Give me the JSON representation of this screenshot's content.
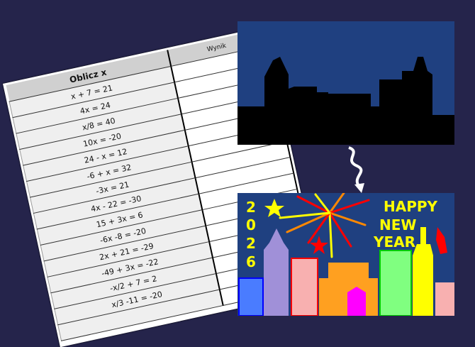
{
  "worksheet": {
    "title": "Oblicz x",
    "answer_header": "Wynik",
    "equations": [
      "x + 7 = 21",
      "4x = 24",
      "x/8 = 40",
      "10x = -20",
      "24 - x = 12",
      "-6 + x = 32",
      "-3x = 21",
      "4x - 22 = -30",
      "15 + 3x = 6",
      "-6x -8 = -20",
      "2x + 21 = -29",
      "-49 + 3x = -22",
      "-x/2 + 7 = 2",
      "x/3 -11 = -20",
      ""
    ]
  },
  "party_image": {
    "year_digits": [
      "2",
      "0",
      "2",
      "6"
    ],
    "greeting": [
      "HAPPY",
      "NEW",
      "YEAR"
    ]
  },
  "colors": {
    "background": "#25244b",
    "night_sky": "#1f4080",
    "silhouette": "#000000",
    "greeting_text": "#ffff00"
  }
}
